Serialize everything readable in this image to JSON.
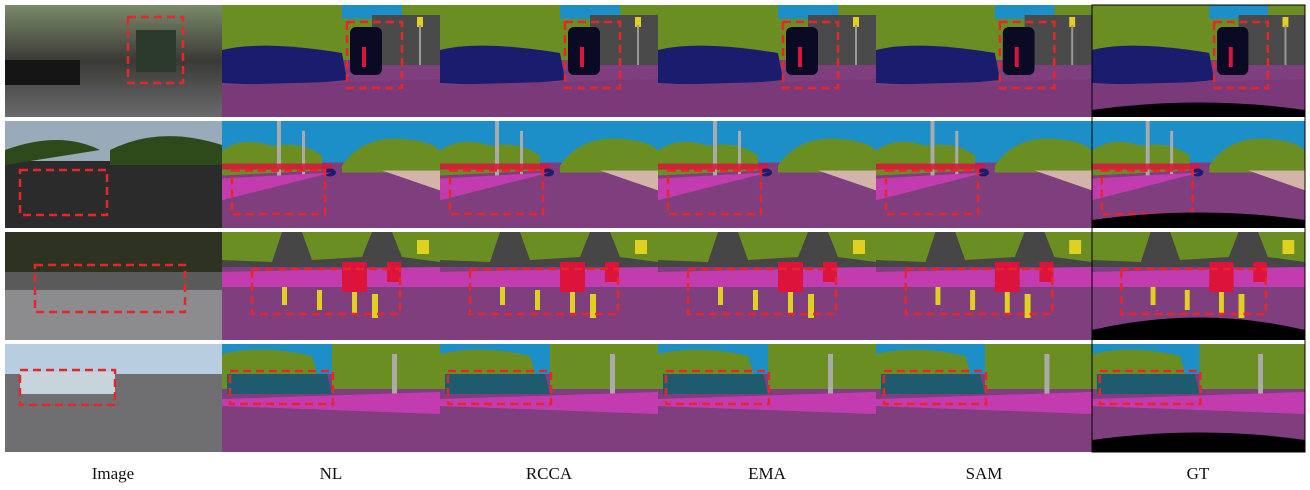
{
  "figure": {
    "columns": [
      "Image",
      "NL",
      "RCCA",
      "EMA",
      "SAM",
      "GT"
    ]
  }
}
